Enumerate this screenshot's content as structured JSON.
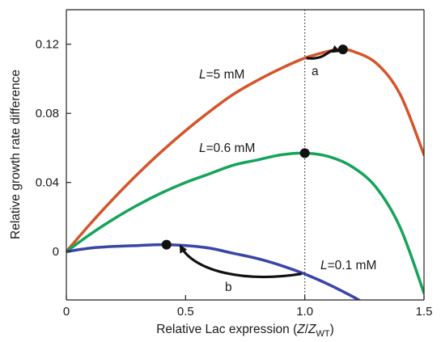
{
  "chart_data": {
    "type": "line",
    "xlabel": {
      "prefix": "Relative Lac expression (",
      "var": "Z",
      "slash": "/",
      "var2": "Z",
      "sub": "WT",
      "suffix": ")"
    },
    "ylabel": "Relative growth rate difference",
    "xlim": [
      0,
      1.5
    ],
    "ylim": [
      -0.028,
      0.14
    ],
    "xticks": [
      0,
      0.5,
      1.0,
      1.5
    ],
    "xtick_labels": [
      "0",
      "0.5",
      "1.0",
      "1.5"
    ],
    "yticks": [
      0,
      0.04,
      0.08,
      0.12
    ],
    "ytick_labels": [
      "0",
      "0.04",
      "0.08",
      "0.12"
    ],
    "grid": false,
    "reference_line": {
      "x": 1.0,
      "style": "dotted"
    },
    "series": [
      {
        "label_var": "L",
        "label_value": "=5 mM",
        "color": "#d4552c",
        "x": [
          0,
          0.1,
          0.2,
          0.3,
          0.4,
          0.5,
          0.6,
          0.7,
          0.8,
          0.9,
          1.0,
          1.1,
          1.15,
          1.2,
          1.3,
          1.4,
          1.5
        ],
        "y": [
          0,
          0.016,
          0.031,
          0.045,
          0.058,
          0.07,
          0.081,
          0.091,
          0.099,
          0.106,
          0.112,
          0.116,
          0.117,
          0.116,
          0.109,
          0.091,
          0.056
        ],
        "optimum": {
          "x": 1.16,
          "y": 0.117
        }
      },
      {
        "label_var": "L",
        "label_value": "=0.6 mM",
        "color": "#16a35a",
        "x": [
          0,
          0.1,
          0.2,
          0.3,
          0.4,
          0.5,
          0.6,
          0.7,
          0.8,
          0.9,
          1.0,
          1.1,
          1.2,
          1.3,
          1.4,
          1.5
        ],
        "y": [
          0,
          0.01,
          0.019,
          0.027,
          0.034,
          0.04,
          0.045,
          0.05,
          0.053,
          0.056,
          0.057,
          0.055,
          0.049,
          0.037,
          0.014,
          -0.024
        ],
        "optimum": {
          "x": 1.0,
          "y": 0.057
        }
      },
      {
        "label_var": "L",
        "label_value": "=0.1 mM",
        "color": "#3a45a6",
        "x": [
          0,
          0.1,
          0.2,
          0.3,
          0.4,
          0.5,
          0.6,
          0.7,
          0.8,
          0.9,
          1.0,
          1.1,
          1.2,
          1.25
        ],
        "y": [
          0,
          0.002,
          0.003,
          0.0035,
          0.004,
          0.0035,
          0.002,
          -0.001,
          -0.004,
          -0.008,
          -0.013,
          -0.019,
          -0.026,
          -0.03
        ],
        "optimum": {
          "x": 0.42,
          "y": 0.004
        }
      }
    ],
    "annotations": [
      {
        "text": "a",
        "from": {
          "x": 1.0,
          "y": 0.112
        },
        "to": {
          "x": 1.15,
          "y": 0.117
        }
      },
      {
        "text": "b",
        "from": {
          "x": 1.0,
          "y": -0.011
        },
        "to": {
          "x": 0.48,
          "y": 0.001
        }
      }
    ]
  }
}
